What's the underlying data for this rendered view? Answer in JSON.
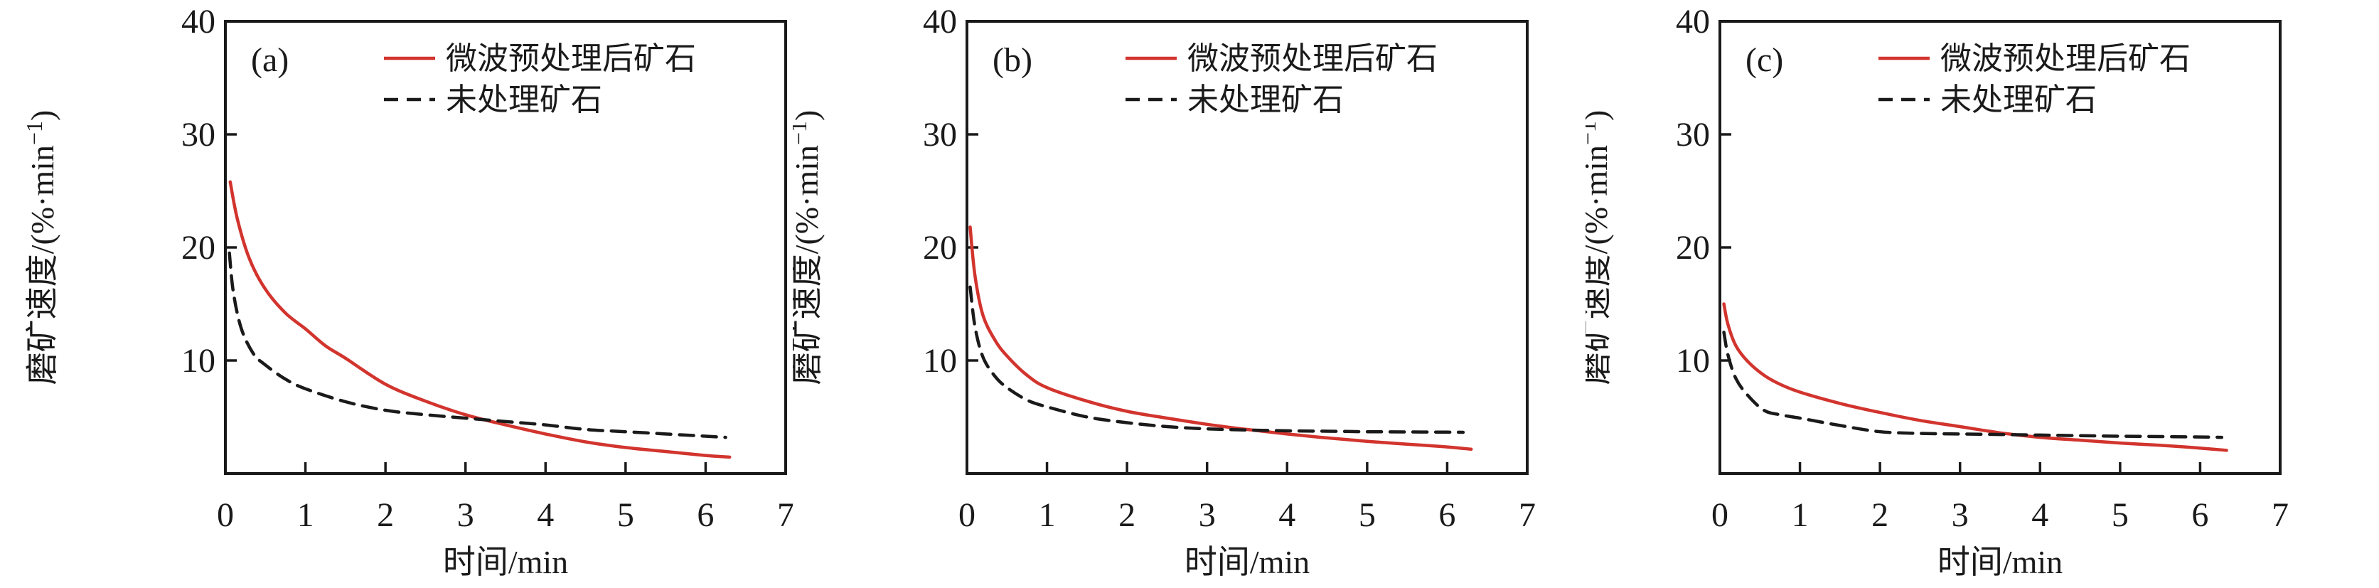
{
  "figure": {
    "background": "#ffffff",
    "frame_color": "#1a1a1a",
    "accent_red": "#d2342e",
    "x_axis_label": "时间/min",
    "y_axis_label": "磨矿速度/(%·min⁻¹)",
    "y_axis_label_parts": {
      "main": "磨矿速度/(%·min",
      "sup": "−1",
      "close": ")"
    },
    "legend": [
      {
        "label": "微波预处理后矿石",
        "style": "solid",
        "color": "#d2342e"
      },
      {
        "label": "未处理矿石",
        "style": "dashed",
        "color": "#1a1a1a"
      }
    ]
  },
  "chart_data": [
    {
      "type": "line",
      "panel_label": "(a)",
      "xlabel": "时间/min",
      "ylabel": "磨矿速度/(%·min⁻¹)",
      "xlim": [
        0,
        7
      ],
      "ylim": [
        0,
        40
      ],
      "x_ticks": [
        "0",
        "1",
        "2",
        "3",
        "4",
        "5",
        "6",
        "7"
      ],
      "y_ticks": [
        "10",
        "20",
        "30",
        "40"
      ],
      "grid": false,
      "legend_position": "top-right-inside",
      "series": [
        {
          "name": "微波预处理后矿石",
          "style": "solid",
          "color": "#d2342e",
          "x": [
            0.06,
            0.15,
            0.3,
            0.5,
            0.75,
            1.0,
            1.25,
            1.5,
            2.0,
            2.5,
            3.0,
            3.5,
            4.0,
            4.5,
            5.0,
            5.5,
            6.0,
            6.3
          ],
          "y": [
            25.8,
            22.5,
            19.0,
            16.3,
            14.2,
            12.8,
            11.3,
            10.2,
            7.9,
            6.4,
            5.2,
            4.3,
            3.5,
            2.8,
            2.3,
            1.95,
            1.6,
            1.45
          ]
        },
        {
          "name": "未处理矿石",
          "style": "dashed",
          "color": "#1a1a1a",
          "x": [
            0.05,
            0.1,
            0.2,
            0.35,
            0.5,
            0.75,
            1.0,
            1.5,
            2.0,
            2.5,
            3.0,
            3.5,
            4.0,
            4.5,
            5.0,
            5.5,
            6.0,
            6.25
          ],
          "y": [
            19.5,
            16.0,
            12.8,
            10.6,
            9.6,
            8.35,
            7.5,
            6.35,
            5.6,
            5.2,
            4.9,
            4.6,
            4.3,
            3.9,
            3.7,
            3.5,
            3.3,
            3.2
          ]
        }
      ]
    },
    {
      "type": "line",
      "panel_label": "(b)",
      "xlabel": "时间/min",
      "ylabel": "磨矿速度/(%·min⁻¹)",
      "xlim": [
        0,
        7
      ],
      "ylim": [
        0,
        40
      ],
      "x_ticks": [
        "0",
        "1",
        "2",
        "3",
        "4",
        "5",
        "6",
        "7"
      ],
      "y_ticks": [
        "10",
        "20",
        "30",
        "40"
      ],
      "grid": false,
      "legend_position": "top-right-inside",
      "series": [
        {
          "name": "微波预处理后矿石",
          "style": "solid",
          "color": "#d2342e",
          "x": [
            0.04,
            0.1,
            0.2,
            0.35,
            0.5,
            0.75,
            1.0,
            1.5,
            2.0,
            2.5,
            3.0,
            3.5,
            4.0,
            4.5,
            5.0,
            5.5,
            6.0,
            6.3
          ],
          "y": [
            21.8,
            17.5,
            14.0,
            11.8,
            10.4,
            8.7,
            7.6,
            6.4,
            5.5,
            4.9,
            4.35,
            3.9,
            3.5,
            3.15,
            2.85,
            2.6,
            2.35,
            2.15
          ]
        },
        {
          "name": "未处理矿石",
          "style": "dashed",
          "color": "#1a1a1a",
          "x": [
            0.04,
            0.1,
            0.2,
            0.35,
            0.5,
            0.75,
            1.0,
            1.5,
            2.0,
            2.5,
            3.0,
            3.5,
            4.0,
            4.5,
            5.0,
            5.5,
            6.0,
            6.2
          ],
          "y": [
            16.5,
            13.0,
            10.3,
            8.6,
            7.6,
            6.5,
            5.9,
            5.0,
            4.5,
            4.15,
            3.95,
            3.85,
            3.78,
            3.74,
            3.7,
            3.68,
            3.66,
            3.65
          ]
        }
      ]
    },
    {
      "type": "line",
      "panel_label": "(c)",
      "xlabel": "时间/min",
      "ylabel": "磨矿速度/(%·min⁻¹)",
      "xlim": [
        0,
        7
      ],
      "ylim": [
        0,
        40
      ],
      "x_ticks": [
        "0",
        "1",
        "2",
        "3",
        "4",
        "5",
        "6",
        "7"
      ],
      "y_ticks": [
        "10",
        "20",
        "30",
        "40"
      ],
      "grid": false,
      "legend_position": "top-right-inside",
      "series": [
        {
          "name": "微波预处理后矿石",
          "style": "solid",
          "color": "#d2342e",
          "x": [
            0.05,
            0.1,
            0.2,
            0.35,
            0.55,
            0.75,
            1.0,
            1.5,
            2.0,
            2.5,
            3.0,
            3.5,
            4.0,
            4.5,
            5.0,
            5.5,
            6.0,
            6.33
          ],
          "y": [
            15.0,
            13.2,
            11.3,
            9.9,
            8.7,
            7.9,
            7.2,
            6.2,
            5.4,
            4.7,
            4.15,
            3.6,
            3.2,
            2.95,
            2.7,
            2.5,
            2.25,
            2.05
          ]
        },
        {
          "name": "未处理矿石",
          "style": "dashed",
          "color": "#1a1a1a",
          "x": [
            0.05,
            0.1,
            0.2,
            0.35,
            0.55,
            0.75,
            1.0,
            1.5,
            2.0,
            2.5,
            3.0,
            3.5,
            4.0,
            4.5,
            5.0,
            5.5,
            6.0,
            6.27
          ],
          "y": [
            12.5,
            10.5,
            8.4,
            6.9,
            5.6,
            5.2,
            4.9,
            4.25,
            3.7,
            3.55,
            3.5,
            3.45,
            3.4,
            3.35,
            3.3,
            3.27,
            3.23,
            3.2
          ]
        }
      ]
    }
  ]
}
